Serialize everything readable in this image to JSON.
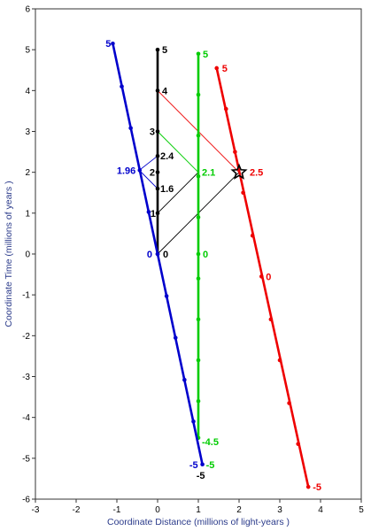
{
  "chart_data": {
    "type": "line",
    "xlabel": "Coordinate Distance (millions of light-years )",
    "ylabel": "Coordinate Time (millions of years )",
    "xlim": [
      -3,
      5
    ],
    "ylim": [
      -6,
      6
    ],
    "xticks": [
      "-3",
      "-2",
      "-1",
      "0",
      "1",
      "2",
      "3",
      "4",
      "5"
    ],
    "yticks": [
      "-6",
      "-5",
      "-4",
      "-3",
      "-2",
      "-1",
      "0",
      "1",
      "2",
      "3",
      "4",
      "5",
      "6"
    ],
    "grid": false,
    "series": [
      {
        "color": "#000000",
        "x": [
          0,
          0
        ],
        "y": [
          0,
          5
        ],
        "markers": [
          [
            0,
            0
          ],
          [
            0,
            1
          ],
          [
            0,
            1.6
          ],
          [
            0,
            2
          ],
          [
            0,
            2.4
          ],
          [
            0,
            3
          ],
          [
            0,
            4
          ],
          [
            0,
            5
          ]
        ]
      },
      {
        "color": "#00cc00",
        "x": [
          1,
          1
        ],
        "y": [
          -4.5,
          4.9
        ],
        "markers": [
          [
            1,
            -4.5
          ],
          [
            1,
            -3.6
          ],
          [
            1,
            -2.6
          ],
          [
            1,
            -1.6
          ],
          [
            1,
            -0.6
          ],
          [
            1,
            0
          ],
          [
            1,
            0.9
          ],
          [
            1,
            1.9
          ],
          [
            1,
            2.9
          ],
          [
            1,
            3.9
          ],
          [
            1,
            4.9
          ]
        ]
      },
      {
        "color": "#0000cc",
        "x": [
          -1.1,
          1.1
        ],
        "y": [
          5.15,
          -5.15
        ],
        "markers": [
          [
            -1.1,
            5.15
          ],
          [
            -0.88,
            4.1
          ],
          [
            -0.66,
            3.08
          ],
          [
            -0.44,
            2.05
          ],
          [
            -0.22,
            1.03
          ],
          [
            0,
            0
          ],
          [
            0.22,
            -1.03
          ],
          [
            0.44,
            -2.05
          ],
          [
            0.66,
            -3.08
          ],
          [
            0.88,
            -4.1
          ],
          [
            1.1,
            -5.15
          ]
        ]
      },
      {
        "color": "#ee0000",
        "x": [
          1.45,
          3.7
        ],
        "y": [
          4.55,
          -5.7
        ],
        "markers": [
          [
            1.45,
            4.55
          ],
          [
            1.68,
            3.55
          ],
          [
            1.9,
            2.5
          ],
          [
            2.1,
            1.5
          ],
          [
            2.33,
            0.45
          ],
          [
            2.55,
            -0.55
          ],
          [
            2.78,
            -1.6
          ],
          [
            3.0,
            -2.6
          ],
          [
            3.23,
            -3.65
          ],
          [
            3.45,
            -4.65
          ],
          [
            3.7,
            -5.7
          ]
        ]
      }
    ],
    "light_rays": [
      {
        "color": "#0000cc",
        "points": [
          [
            0,
            1.6
          ],
          [
            -0.45,
            2.05
          ],
          [
            0,
            2.4
          ]
        ]
      },
      {
        "color": "#ee0000",
        "points": [
          [
            0,
            4
          ],
          [
            2,
            2
          ]
        ]
      },
      {
        "color": "#00cc00",
        "points": [
          [
            0,
            3
          ],
          [
            1,
            2
          ]
        ]
      },
      {
        "color": "#000000",
        "points": [
          [
            0,
            0
          ],
          [
            2,
            2
          ]
        ]
      },
      {
        "color": "#000000",
        "points": [
          [
            0,
            1
          ],
          [
            1,
            2
          ]
        ]
      }
    ],
    "event": {
      "x": 2,
      "y": 2,
      "color": "#000000"
    },
    "annotations": [
      {
        "text": "5",
        "x": -1.1,
        "y": 5.15,
        "color": "#0000cc",
        "anchor": "end",
        "dx": -2,
        "dy": 4
      },
      {
        "text": "5",
        "x": 0,
        "y": 5,
        "color": "#000000",
        "anchor": "start",
        "dx": 5,
        "dy": 4
      },
      {
        "text": "4",
        "x": 0,
        "y": 4,
        "color": "#000000",
        "anchor": "start",
        "dx": 5,
        "dy": 4
      },
      {
        "text": "3",
        "x": 0,
        "y": 3,
        "color": "#000000",
        "anchor": "end",
        "dx": -3,
        "dy": 4
      },
      {
        "text": "2.4",
        "x": 0,
        "y": 2.4,
        "color": "#000000",
        "anchor": "start",
        "dx": 3,
        "dy": 4
      },
      {
        "text": "2",
        "x": 0,
        "y": 2,
        "color": "#000000",
        "anchor": "end",
        "dx": -3,
        "dy": 4
      },
      {
        "text": "1.6",
        "x": 0,
        "y": 1.6,
        "color": "#000000",
        "anchor": "start",
        "dx": 3,
        "dy": 4
      },
      {
        "text": "1",
        "x": 0,
        "y": 1,
        "color": "#000000",
        "anchor": "end",
        "dx": -2,
        "dy": 4
      },
      {
        "text": "0",
        "x": 0,
        "y": 0,
        "color": "#000000",
        "anchor": "start",
        "dx": 6,
        "dy": 4
      },
      {
        "text": "0",
        "x": 0,
        "y": 0,
        "color": "#0000cc",
        "anchor": "end",
        "dx": -6,
        "dy": 4
      },
      {
        "text": "1.96",
        "x": -0.45,
        "y": 2.05,
        "color": "#0000cc",
        "anchor": "end",
        "dx": -4,
        "dy": 4
      },
      {
        "text": "5",
        "x": 1,
        "y": 4.9,
        "color": "#00cc00",
        "anchor": "start",
        "dx": 5,
        "dy": 4
      },
      {
        "text": "2.1",
        "x": 1,
        "y": 2,
        "color": "#00cc00",
        "anchor": "start",
        "dx": 4,
        "dy": 4
      },
      {
        "text": "0",
        "x": 1,
        "y": 0,
        "color": "#00cc00",
        "anchor": "start",
        "dx": 5,
        "dy": 4
      },
      {
        "text": "-4.5",
        "x": 1,
        "y": -4.5,
        "color": "#00cc00",
        "anchor": "start",
        "dx": 4,
        "dy": 8
      },
      {
        "text": "-5",
        "x": 1.1,
        "y": -5.15,
        "color": "#00cc00",
        "anchor": "start",
        "dx": 4,
        "dy": 4
      },
      {
        "text": "-5",
        "x": 1.1,
        "y": -5.15,
        "color": "#0000cc",
        "anchor": "end",
        "dx": -5,
        "dy": 4
      },
      {
        "text": "-5",
        "x": 1.1,
        "y": -5.15,
        "color": "#000000",
        "anchor": "middle",
        "dx": -2,
        "dy": 16
      },
      {
        "text": "5",
        "x": 1.45,
        "y": 4.55,
        "color": "#ee0000",
        "anchor": "start",
        "dx": 6,
        "dy": 4
      },
      {
        "text": "2.5",
        "x": 2,
        "y": 2,
        "color": "#ee0000",
        "anchor": "start",
        "dx": 12,
        "dy": 4
      },
      {
        "text": "0",
        "x": 2.55,
        "y": -0.55,
        "color": "#ee0000",
        "anchor": "start",
        "dx": 5,
        "dy": 4
      },
      {
        "text": "-5",
        "x": 3.7,
        "y": -5.7,
        "color": "#ee0000",
        "anchor": "start",
        "dx": 5,
        "dy": 4
      }
    ]
  }
}
